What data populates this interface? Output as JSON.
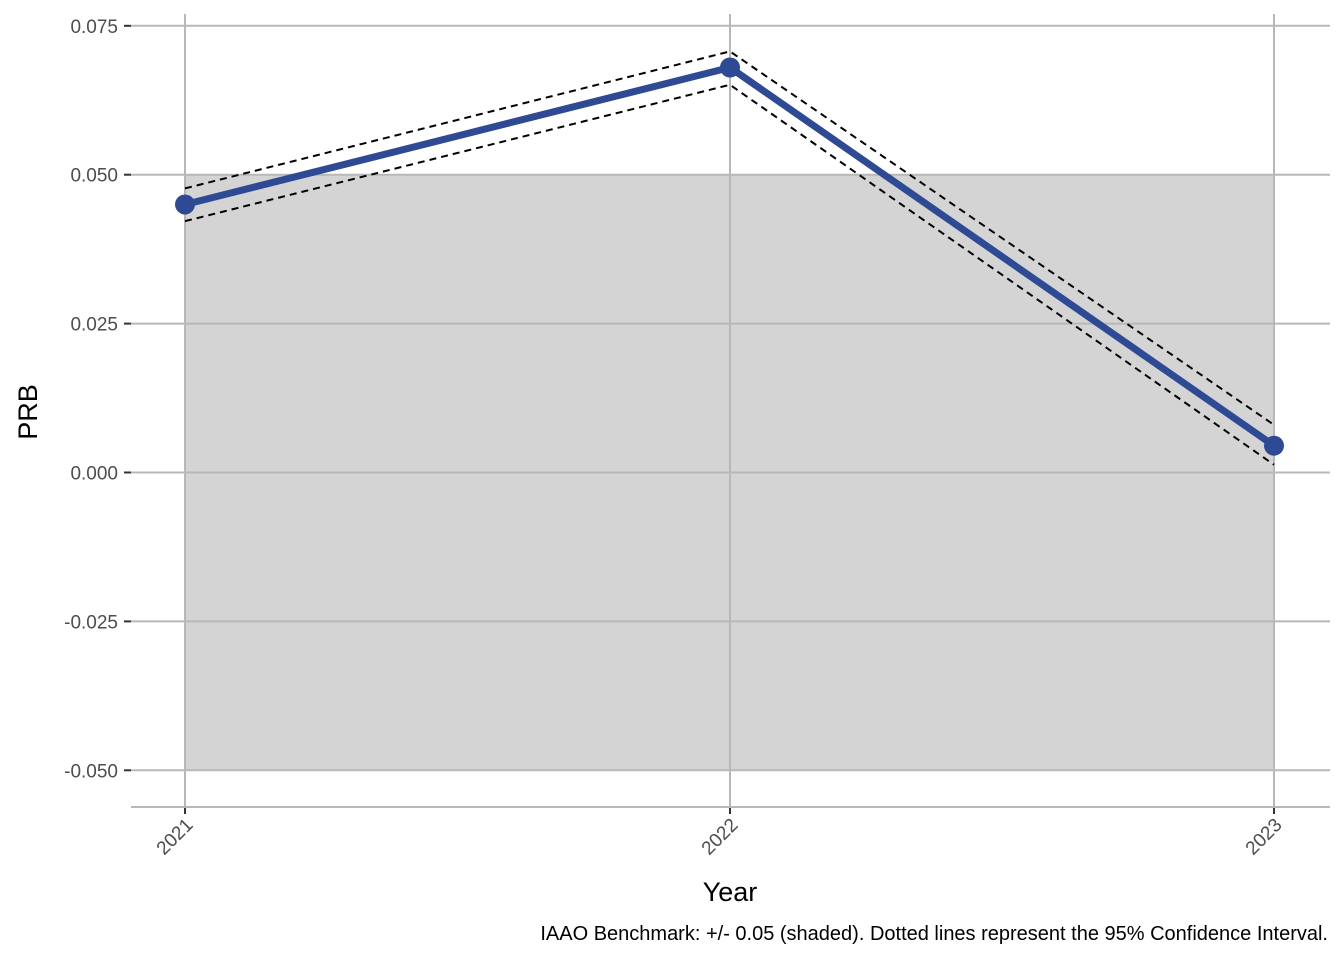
{
  "chart_data": {
    "type": "line",
    "xlabel": "Year",
    "ylabel": "PRB",
    "caption": "IAAO Benchmark: +/- 0.05 (shaded). Dotted lines represent the 95% Confidence Interval.",
    "x": [
      "2021",
      "2022",
      "2023"
    ],
    "series": [
      {
        "values": [
          0.045,
          0.068,
          0.0045
        ]
      }
    ],
    "ci_upper": [
      0.0477,
      0.0707,
      0.008
    ],
    "ci_lower": [
      0.0422,
      0.0651,
      0.0013
    ],
    "benchmark_band": [
      -0.05,
      0.05
    ],
    "ylim": [
      -0.056,
      0.0765
    ],
    "y_ticks": [
      "0.075",
      "0.050",
      "0.025",
      "0.000",
      "-0.025",
      "-0.050"
    ],
    "y_tick_values": [
      0.075,
      0.05,
      0.025,
      0.0,
      -0.025,
      -0.05
    ],
    "grid": true,
    "colors": {
      "line": "#2f4a94",
      "band": "#d4d4d4",
      "grid": "#b8b8b8",
      "ci": "#000000"
    }
  }
}
